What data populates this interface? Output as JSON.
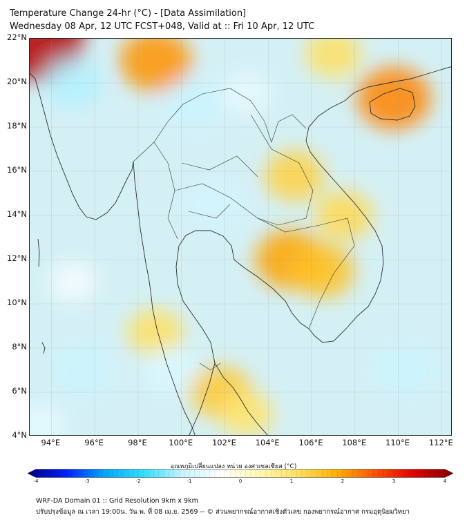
{
  "header": {
    "title": "Temperature Change 24-hr (°C) - [Data Assimilation]",
    "subtitle": "Wednesday 08 Apr, 12 UTC FCST+048, Valid at :: Fri 10 Apr, 12 UTC"
  },
  "map": {
    "lat_labels": [
      "22°N",
      "20°N",
      "18°N",
      "16°N",
      "14°N",
      "12°N",
      "10°N",
      "8°N",
      "6°N",
      "4°N"
    ],
    "lon_labels": [
      "94°E",
      "96°E",
      "98°E",
      "100°E",
      "102°E",
      "104°E",
      "106°E",
      "108°E",
      "110°E",
      "112°E"
    ],
    "lat_range": [
      4,
      22
    ],
    "lon_range": [
      93,
      112.5
    ],
    "field_anomalies": [
      {
        "lon": 93.3,
        "lat": 21.9,
        "value": 3.0
      },
      {
        "lon": 98.8,
        "lat": 21.0,
        "value": 1.7
      },
      {
        "lon": 109.8,
        "lat": 19.3,
        "value": 1.8
      },
      {
        "lon": 107.0,
        "lat": 21.3,
        "value": 0.9
      },
      {
        "lon": 105.2,
        "lat": 15.8,
        "value": 1.1
      },
      {
        "lon": 105.0,
        "lat": 12.0,
        "value": 1.6
      },
      {
        "lon": 106.5,
        "lat": 11.5,
        "value": 1.3
      },
      {
        "lon": 107.5,
        "lat": 14.0,
        "value": 1.0
      },
      {
        "lon": 101.8,
        "lat": 6.0,
        "value": 1.2
      },
      {
        "lon": 98.8,
        "lat": 8.7,
        "value": 0.9
      },
      {
        "lon": 103.0,
        "lat": 5.0,
        "value": 0.8
      },
      {
        "lon": 95.0,
        "lat": 20.0,
        "value": -1.0
      },
      {
        "lon": 100.5,
        "lat": 19.0,
        "value": -0.9
      },
      {
        "lon": 103.0,
        "lat": 19.5,
        "value": -0.6
      },
      {
        "lon": 101.5,
        "lat": 14.5,
        "value": -0.8
      },
      {
        "lon": 95.5,
        "lat": 7.0,
        "value": -0.9
      },
      {
        "lon": 110.3,
        "lat": 7.0,
        "value": -0.9
      },
      {
        "lon": 99.5,
        "lat": 7.0,
        "value": -0.7
      },
      {
        "lon": 95.0,
        "lat": 11.0,
        "value": -0.4
      },
      {
        "lon": 93.5,
        "lat": 4.5,
        "value": -0.6
      }
    ]
  },
  "colorbar": {
    "title": "อุณหภูมิเปลี่ยนแปลง หน่วย องศาเซลเซียส (°C)",
    "ticks": [
      "-4",
      "-3",
      "-2",
      "-1",
      "0",
      "1",
      "2",
      "3",
      "4"
    ],
    "range": [
      -4,
      4
    ],
    "colors": [
      "#00007f",
      "#0020ff",
      "#00a8ff",
      "#30e0ff",
      "#c8f4ff",
      "#ffffff",
      "#fff8b0",
      "#ffe060",
      "#ffb000",
      "#ff5000",
      "#e00000",
      "#7f0000"
    ]
  },
  "footer": {
    "line1": "WRF-DA Domain 01 :: Grid Resolution 9km x 9km",
    "line2": "ปรับปรุงข้อมูล ณ เวลา 19:00น. วัน พ. ที่ 08 เม.ย. 2569 -- © ส่วนพยากรณ์อากาศเชิงตัวเลข กองพยากรณ์อากาศ กรมอุตุนิยมวิทยา"
  }
}
